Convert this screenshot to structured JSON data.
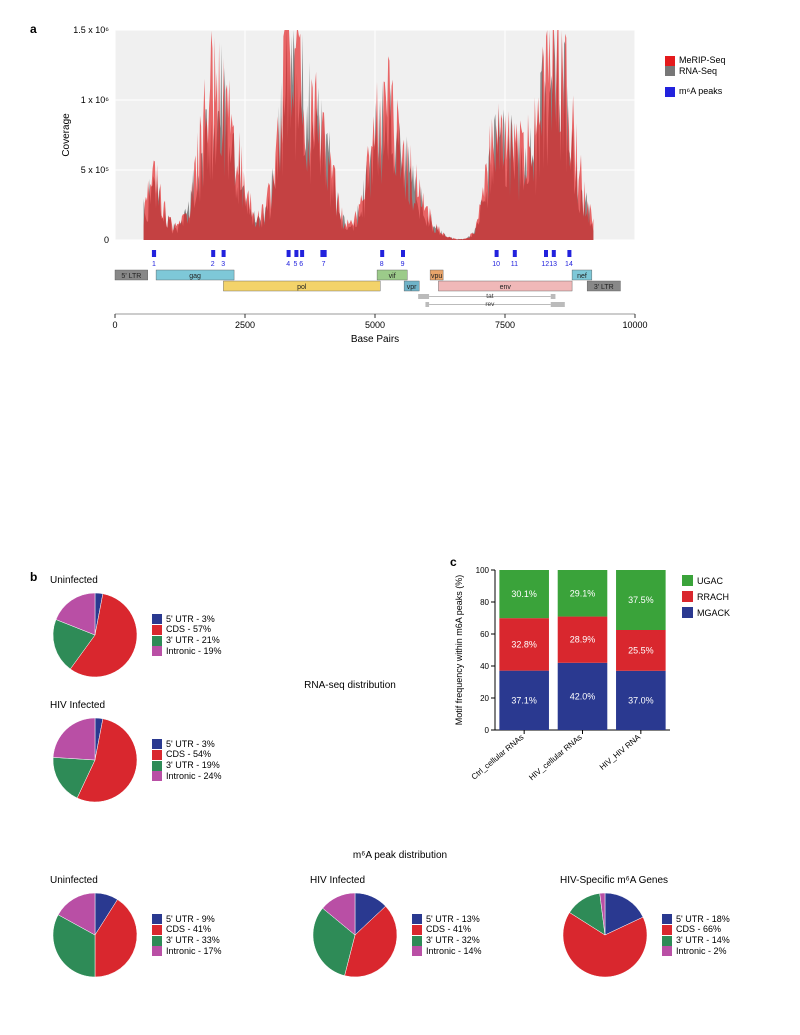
{
  "panelA": {
    "label": "a",
    "chart": {
      "type": "area",
      "xlim": [
        0,
        10000
      ],
      "ylim": [
        0,
        1500000
      ],
      "xlabel": "Base Pairs",
      "ylabel": "Coverage",
      "xticks": [
        0,
        2500,
        5000,
        7500,
        10000
      ],
      "xtick_labels": [
        "0",
        "2500",
        "5000",
        "7500",
        "10000"
      ],
      "yticks": [
        0,
        500000,
        1000000,
        1500000
      ],
      "ytick_labels": [
        "0",
        "5 x 10⁵",
        "1 x 10⁶",
        "1.5 x 10⁶"
      ],
      "background_color": "#f0f0f0",
      "grid_color": "#ffffff",
      "series": [
        {
          "name": "MeRIP-Seq",
          "color": "#e41a1c"
        },
        {
          "name": "RNA-Seq",
          "color": "#777777"
        }
      ],
      "overlap_color": "#6b1a1a"
    },
    "legend": {
      "merip": {
        "label": "MeRIP-Seq",
        "color": "#e41a1c"
      },
      "rnaseq": {
        "label": "RNA-Seq",
        "color": "#777777"
      },
      "m6a": {
        "label": "m⁶A peaks",
        "color": "#2222dd"
      }
    },
    "peaks": {
      "color": "#2222dd",
      "items": [
        {
          "n": "1",
          "x": 710,
          "w": 80
        },
        {
          "n": "2",
          "x": 1850,
          "w": 60
        },
        {
          "n": "3",
          "x": 2050,
          "w": 60
        },
        {
          "n": "4",
          "x": 3300,
          "w": 60
        },
        {
          "n": "5",
          "x": 3450,
          "w": 40
        },
        {
          "n": "6",
          "x": 3560,
          "w": 40
        },
        {
          "n": "7",
          "x": 3950,
          "w": 120
        },
        {
          "n": "8",
          "x": 5100,
          "w": 60
        },
        {
          "n": "9",
          "x": 5500,
          "w": 60
        },
        {
          "n": "10",
          "x": 7300,
          "w": 60
        },
        {
          "n": "11",
          "x": 7650,
          "w": 60
        },
        {
          "n": "12",
          "x": 8250,
          "w": 50
        },
        {
          "n": "13",
          "x": 8400,
          "w": 50
        },
        {
          "n": "14",
          "x": 8700,
          "w": 60
        }
      ]
    },
    "genome_track": {
      "segments": [
        {
          "label": "5' LTR",
          "start": 0,
          "end": 630,
          "color": "#888888",
          "row": 0
        },
        {
          "label": "gag",
          "start": 790,
          "end": 2290,
          "color": "#7ec8d8",
          "row": 0
        },
        {
          "label": "pol",
          "start": 2085,
          "end": 5100,
          "color": "#f3d36a",
          "row": 1
        },
        {
          "label": "vif",
          "start": 5040,
          "end": 5620,
          "color": "#9ccb8a",
          "row": 0
        },
        {
          "label": "vpr",
          "start": 5560,
          "end": 5850,
          "color": "#6fb3c8",
          "row": 1
        },
        {
          "label": "vpu",
          "start": 6060,
          "end": 6310,
          "color": "#e8a46a",
          "row": 0
        },
        {
          "label": "env",
          "start": 6220,
          "end": 8790,
          "color": "#f0b8b8",
          "row": 1
        },
        {
          "label": "nef",
          "start": 8790,
          "end": 9170,
          "color": "#7ec8d8",
          "row": 0
        },
        {
          "label": "3' LTR",
          "start": 9080,
          "end": 9720,
          "color": "#888888",
          "row": 1
        }
      ],
      "tat_rev": [
        {
          "label": "tat",
          "parts": [
            [
              5830,
              6040
            ],
            [
              8380,
              8470
            ]
          ],
          "color": "#bbbbbb"
        },
        {
          "label": "rev",
          "parts": [
            [
              5970,
              6040
            ],
            [
              8380,
              8650
            ]
          ],
          "color": "#bbbbbb"
        }
      ]
    }
  },
  "rnaSeqTitle": "RNA-seq distribution",
  "m6aDistTitle": "m⁶A peak distribution",
  "panelB": {
    "label": "b",
    "colors": {
      "5utr": "#2a3990",
      "cds": "#d9272e",
      "3utr": "#2e8b57",
      "intronic": "#b94fa5"
    },
    "pies": {
      "rnaseq_uninfected": {
        "title": "Uninfected",
        "slices": [
          {
            "key": "5utr",
            "label": "5' UTR - 3%",
            "value": 3
          },
          {
            "key": "cds",
            "label": "CDS - 57%",
            "value": 57
          },
          {
            "key": "3utr",
            "label": "3' UTR - 21%",
            "value": 21
          },
          {
            "key": "intronic",
            "label": "Intronic - 19%",
            "value": 19
          }
        ]
      },
      "rnaseq_hiv": {
        "title": "HIV Infected",
        "slices": [
          {
            "key": "5utr",
            "label": "5' UTR - 3%",
            "value": 3
          },
          {
            "key": "cds",
            "label": "CDS - 54%",
            "value": 54
          },
          {
            "key": "3utr",
            "label": "3' UTR - 19%",
            "value": 19
          },
          {
            "key": "intronic",
            "label": "Intronic - 24%",
            "value": 24
          }
        ]
      },
      "m6a_uninfected": {
        "title": "Uninfected",
        "slices": [
          {
            "key": "5utr",
            "label": "5' UTR - 9%",
            "value": 9
          },
          {
            "key": "cds",
            "label": "CDS - 41%",
            "value": 41
          },
          {
            "key": "3utr",
            "label": "3' UTR - 33%",
            "value": 33
          },
          {
            "key": "intronic",
            "label": "Intronic - 17%",
            "value": 17
          }
        ]
      },
      "m6a_hiv": {
        "title": "HIV Infected",
        "slices": [
          {
            "key": "5utr",
            "label": "5' UTR - 13%",
            "value": 13
          },
          {
            "key": "cds",
            "label": "CDS - 41%",
            "value": 41
          },
          {
            "key": "3utr",
            "label": "3' UTR - 32%",
            "value": 32
          },
          {
            "key": "intronic",
            "label": "Intronic - 14%",
            "value": 14
          }
        ]
      },
      "m6a_hivspec": {
        "title": "HIV-Specific m⁶A Genes",
        "slices": [
          {
            "key": "5utr",
            "label": "5' UTR - 18%",
            "value": 18
          },
          {
            "key": "cds",
            "label": "CDS - 66%",
            "value": 66
          },
          {
            "key": "3utr",
            "label": "3' UTR - 14%",
            "value": 14
          },
          {
            "key": "intronic",
            "label": "Intronic - 2%",
            "value": 2
          }
        ]
      }
    }
  },
  "panelC": {
    "label": "c",
    "chart": {
      "type": "stacked-bar",
      "ylabel": "Motif frequency within m6A peaks (%)",
      "ylim": [
        0,
        100
      ],
      "yticks": [
        0,
        20,
        40,
        60,
        80,
        100
      ],
      "categories": [
        "Ctrl_cellular RNAs",
        "HIV_cellular RNAs",
        "HIV_HIV RNA"
      ],
      "legend": [
        {
          "key": "UGAC",
          "label": "UGAC",
          "color": "#3aa33a"
        },
        {
          "key": "RRACH",
          "label": "RRACH",
          "color": "#d9272e"
        },
        {
          "key": "MGACK",
          "label": "MGACK",
          "color": "#2a3990"
        }
      ],
      "data": [
        {
          "UGAC": 30.1,
          "RRACH": 32.8,
          "MGACK": 37.1,
          "labels": [
            "30.1%",
            "32.8%",
            "37.1%"
          ]
        },
        {
          "UGAC": 29.1,
          "RRACH": 28.9,
          "MGACK": 42.0,
          "labels": [
            "29.1%",
            "28.9%",
            "42.0%"
          ]
        },
        {
          "UGAC": 37.5,
          "RRACH": 25.5,
          "MGACK": 37.0,
          "labels": [
            "37.5%",
            "25.5%",
            "37.0%"
          ]
        }
      ],
      "bar_width": 0.85,
      "label_color": "#ffffff",
      "label_fontsize": 9
    }
  }
}
